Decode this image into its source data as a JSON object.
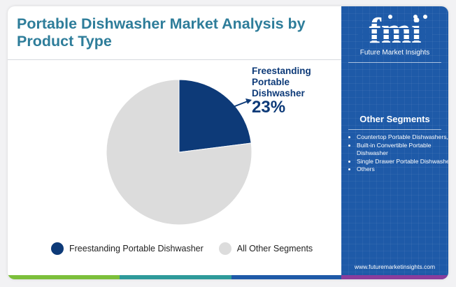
{
  "title": "Portable Dishwasher Market Analysis by Product Type",
  "colors": {
    "title": "#2e7d9a",
    "primary": "#0d3a78",
    "other": "#dcdcdc",
    "sidebar": "#1e5aa8",
    "bar": [
      "#7cbf3b",
      "#2e9a9a",
      "#1e5aa8",
      "#8a3d9c"
    ]
  },
  "chart_data": {
    "type": "pie",
    "title": "Portable Dishwasher Market Analysis by Product Type",
    "series": [
      {
        "name": "Freestanding Portable Dishwasher",
        "value": 23
      },
      {
        "name": "All Other Segments",
        "value": 77
      }
    ],
    "legend_position": "bottom",
    "annotation": {
      "label": "Freestanding Portable Dishwasher",
      "value": "23%"
    }
  },
  "callout": {
    "label_line1": "Freestanding",
    "label_line2": "Portable",
    "label_line3": "Dishwasher",
    "value": "23%"
  },
  "legend": {
    "items": [
      "Freestanding Portable Dishwasher",
      "All Other Segments"
    ]
  },
  "sidebar": {
    "logo_text": "fmi",
    "logo_tagline": "Future Market Insights",
    "segments_title": "Other Segments",
    "segments": [
      "Countertop Portable Dishwashers,",
      "Built-in Convertible Portable Dishwasher",
      "Single Drawer Portable Dishwasher",
      "Others"
    ],
    "website": "www.futuremarketinsights.com"
  }
}
